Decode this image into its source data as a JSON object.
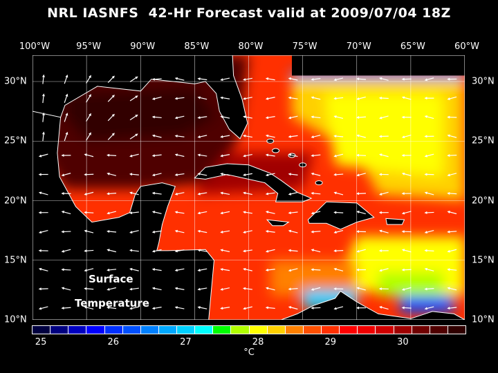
{
  "title": "NRL IASNFS  42-Hr Forecast valid at 2009/07/04 18Z",
  "lon_labels": [
    "100°W",
    "95°W",
    "90°W",
    "85°W",
    "80°W",
    "75°W",
    "70°W",
    "65°W",
    "60°W"
  ],
  "lon_values": [
    -100,
    -95,
    -90,
    -85,
    -80,
    -75,
    -70,
    -65,
    -60
  ],
  "lat_labels": [
    "30°N",
    "25°N",
    "20°N",
    "15°N",
    "10°N"
  ],
  "lat_values": [
    30,
    25,
    20,
    15,
    10
  ],
  "map_labels": {
    "line1": "Surface",
    "line2": "Temperature"
  },
  "colorbar": {
    "unit": "°C",
    "min": 25,
    "max": 30.75,
    "step": 0.25,
    "tick_labels": [
      "25",
      "26",
      "27",
      "28",
      "29",
      "30"
    ],
    "tick_values": [
      25,
      26,
      27,
      28,
      29,
      30
    ],
    "colors": [
      "#000040",
      "#000080",
      "#0000c0",
      "#0000ff",
      "#0030ff",
      "#0050ff",
      "#0080ff",
      "#00a8ff",
      "#00d0ff",
      "#00ffff",
      "#00ff00",
      "#b0ff00",
      "#ffff00",
      "#ffd000",
      "#ff8000",
      "#ff5000",
      "#ff3000",
      "#ff0000",
      "#f00000",
      "#d00000",
      "#a00000",
      "#700000",
      "#500000",
      "#300000"
    ]
  }
}
